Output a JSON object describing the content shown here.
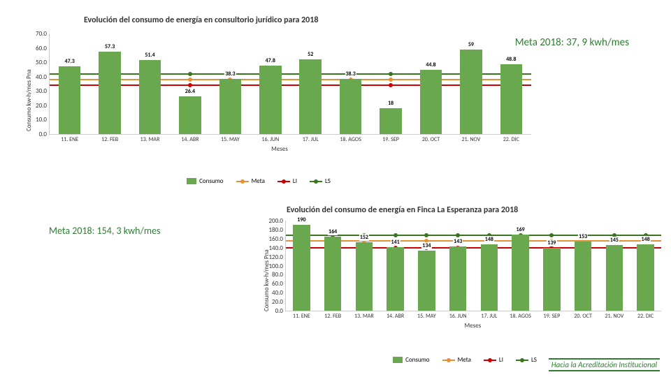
{
  "footer_logo": "Hacia la Acreditación Institucional",
  "chart1": {
    "type": "bar-with-lines",
    "title": "Evolución del consumo de energía en consultorio jurídico para 2018",
    "title_fontsize": 12,
    "meta_text": "Meta 2018: 37, 9 kwh/mes",
    "meta_fontsize": 15,
    "y_label": "Consumo kw-h/mes Pna",
    "x_label": "Meses",
    "ylim": [
      0,
      70
    ],
    "ytick_step": 10,
    "categories": [
      "11. ENE",
      "12. FEB",
      "13. MAR",
      "14. ABR",
      "15. MAY",
      "16. JUN",
      "17. JUL",
      "18. AGOS",
      "19. SEP",
      "20. OCT",
      "21. NOV",
      "22. DIC"
    ],
    "values": [
      47.3,
      57.3,
      51.4,
      26.4,
      38.3,
      47.8,
      52.0,
      38.3,
      18.0,
      44.8,
      59.0,
      48.8
    ],
    "bar_color": "#6aa84f",
    "bar_width": 0.55,
    "lines": {
      "meta": {
        "value": 37.9,
        "color": "#e69138"
      },
      "li": {
        "value": 34.0,
        "color": "#cc0000"
      },
      "ls": {
        "value": 42.0,
        "color": "#38761d"
      }
    },
    "legend": [
      {
        "key": "consumo",
        "label": "Consumo",
        "type": "box",
        "color": "#6aa84f"
      },
      {
        "key": "meta",
        "label": "Meta",
        "type": "line",
        "color": "#e69138"
      },
      {
        "key": "li",
        "label": "LI",
        "type": "line",
        "color": "#cc0000"
      },
      {
        "key": "ls",
        "label": "LS",
        "type": "line",
        "color": "#38761d"
      }
    ],
    "background_color": "#ffffff"
  },
  "chart2": {
    "type": "bar-with-lines",
    "title": "Evolución del consumo de energía en Finca La Esperanza para 2018",
    "title_fontsize": 12,
    "meta_text": "Meta 2018: 154, 3 kwh/mes",
    "meta_fontsize": 14,
    "y_label": "Consumo kw-h/mes Pna",
    "x_label": "Meses",
    "ylim": [
      0,
      200
    ],
    "ytick_step": 20,
    "categories": [
      "11. ENE",
      "12. FEB",
      "13. MAR",
      "14. ABR",
      "15. MAY",
      "16. JUN",
      "17. JUL",
      "18. AGOS",
      "19. SEP",
      "20. OCT",
      "21. NOV",
      "22. DIC"
    ],
    "values": [
      190,
      164,
      152,
      141,
      134,
      143,
      148,
      169,
      139,
      153,
      145,
      148
    ],
    "bar_color": "#6aa84f",
    "bar_width": 0.55,
    "lines": {
      "meta": {
        "value": 154.3,
        "color": "#e69138"
      },
      "li": {
        "value": 140.0,
        "color": "#cc0000"
      },
      "ls": {
        "value": 168.0,
        "color": "#38761d"
      }
    },
    "legend": [
      {
        "key": "consumo",
        "label": "Consumo",
        "type": "box",
        "color": "#6aa84f"
      },
      {
        "key": "meta",
        "label": "Meta",
        "type": "line",
        "color": "#e69138"
      },
      {
        "key": "li",
        "label": "LI",
        "type": "line",
        "color": "#cc0000"
      },
      {
        "key": "ls",
        "label": "LS",
        "type": "line",
        "color": "#38761d"
      }
    ],
    "background_color": "#ffffff"
  }
}
